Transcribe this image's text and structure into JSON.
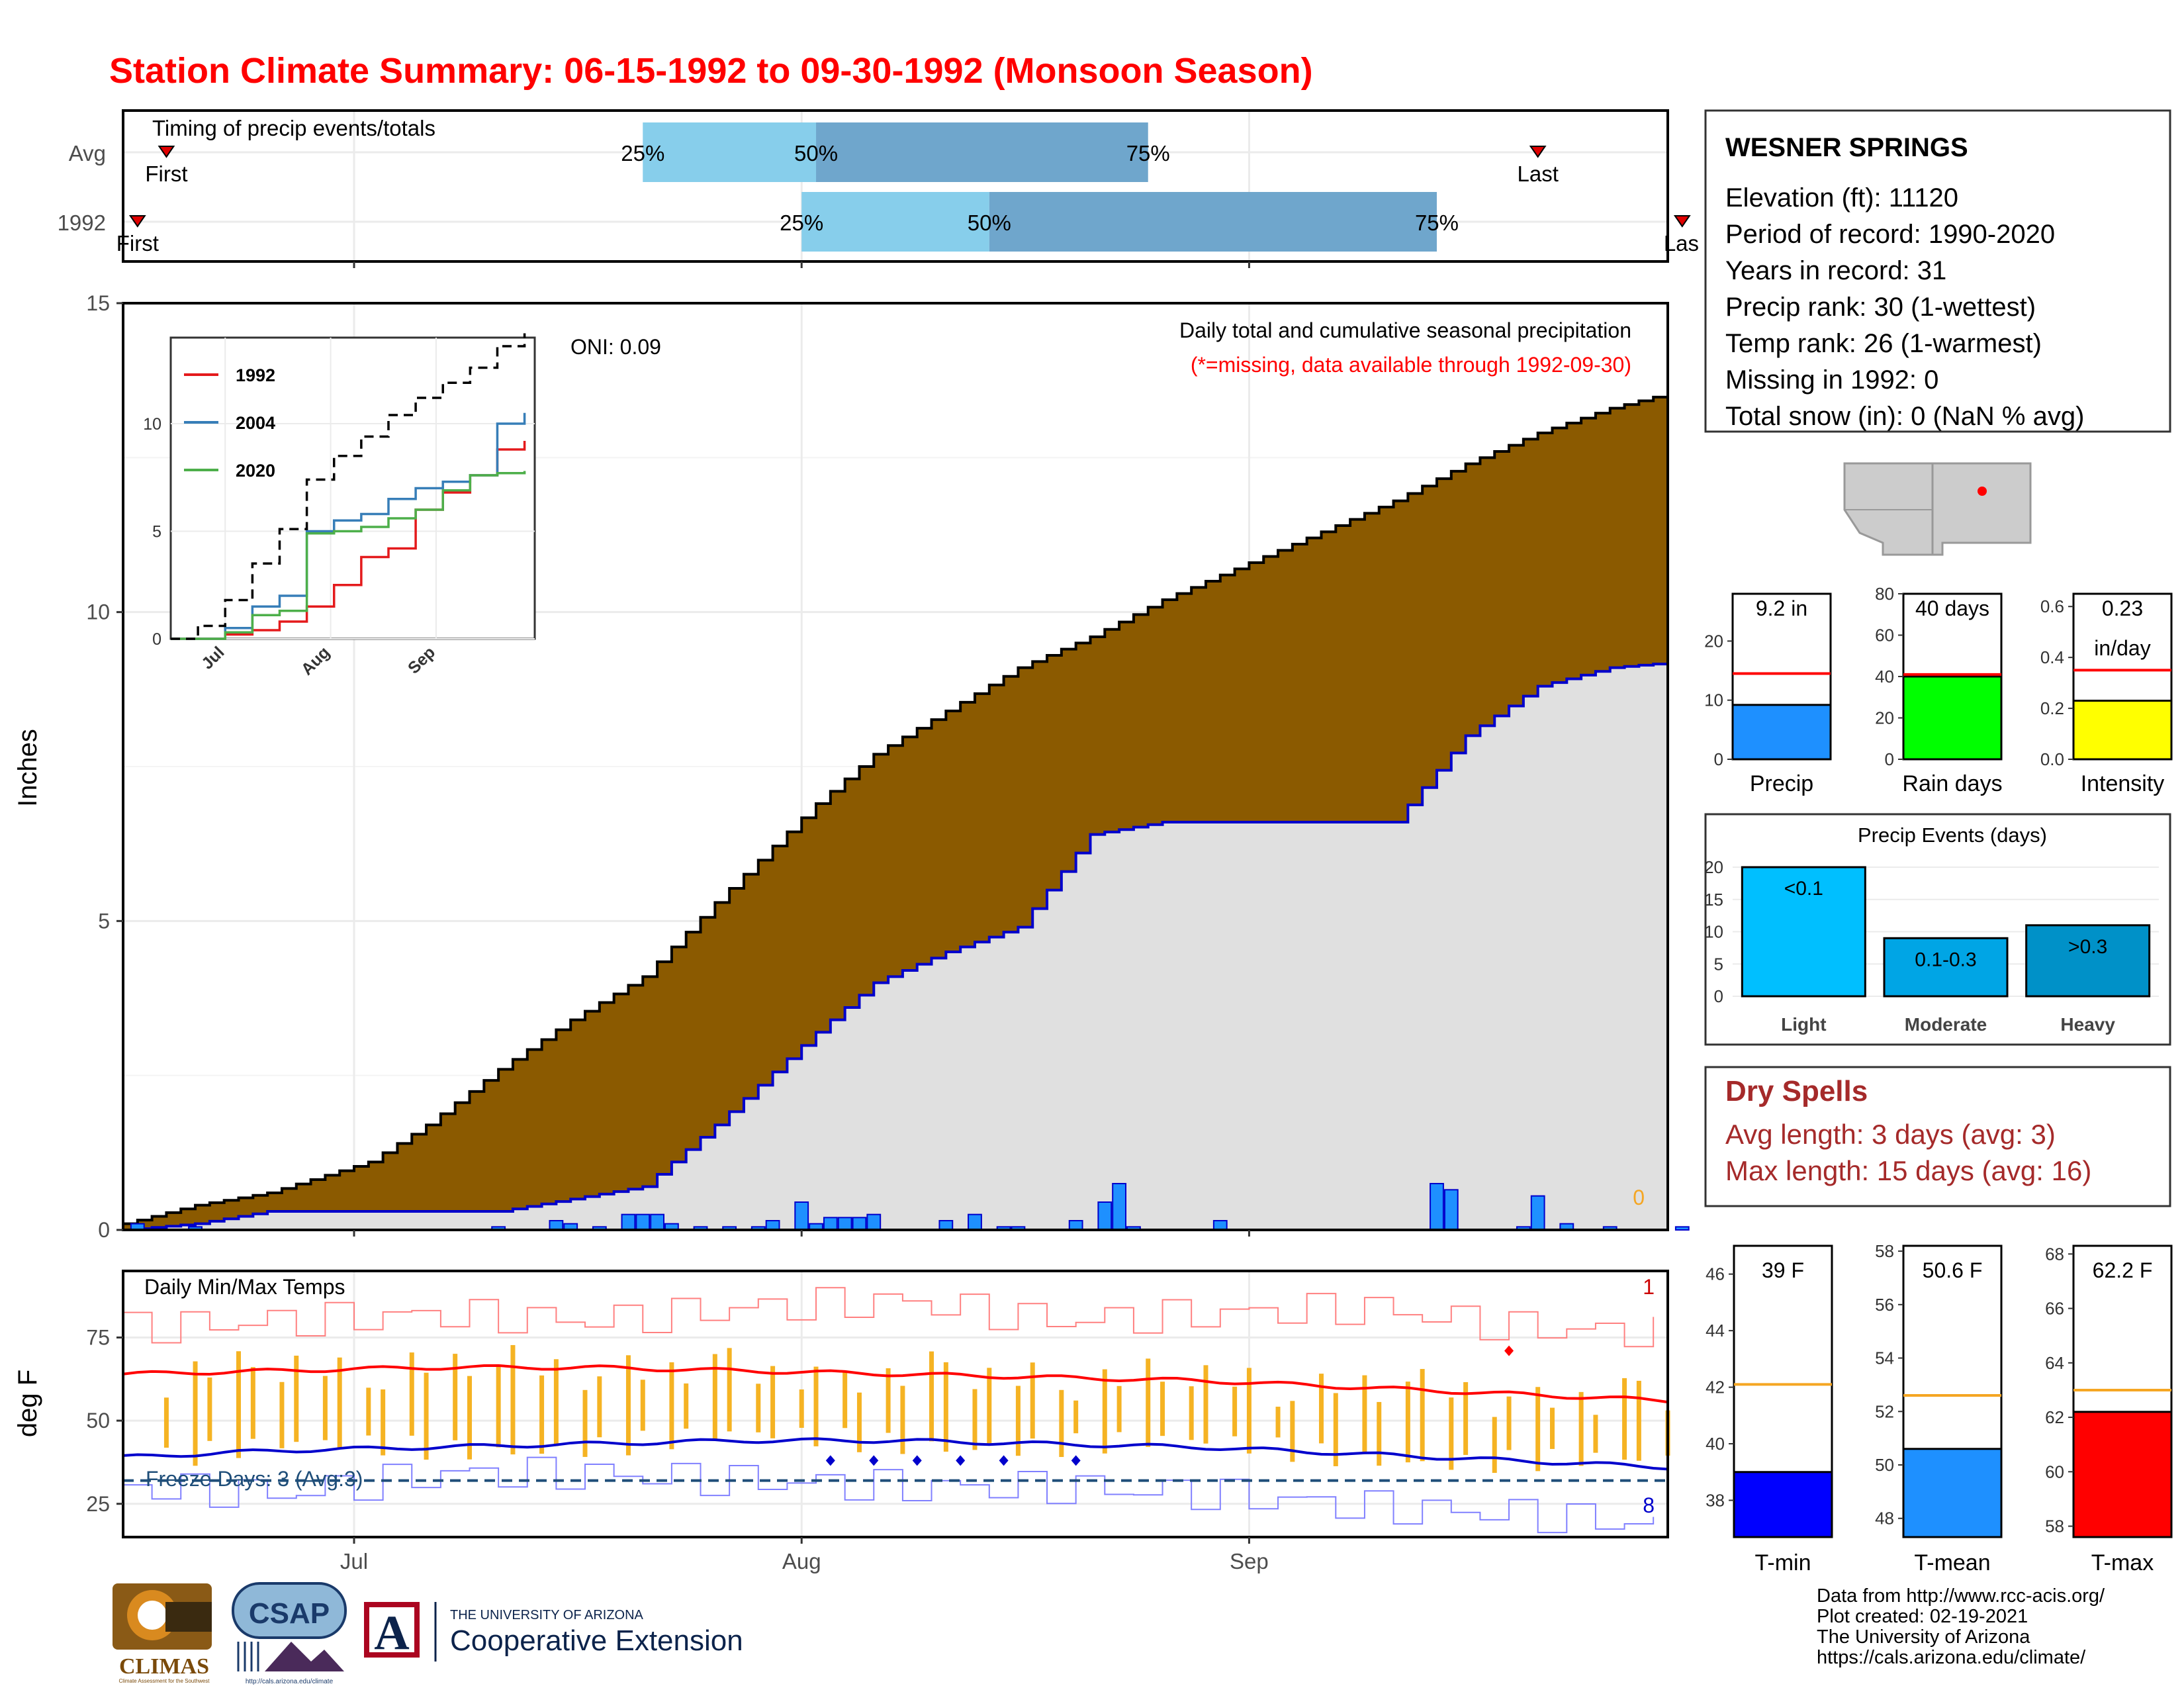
{
  "title": "Station Climate Summary: 06-15-1992 to 09-30-1992 (Monsoon Season)",
  "timing": {
    "label": "Timing of precip events/totals",
    "rows": [
      "Avg",
      "1992"
    ],
    "first_label": "First",
    "last_label": "Last",
    "last_label_clipped": "Las",
    "pct_labels": [
      "25%",
      "50%",
      "75%"
    ],
    "avg": {
      "first": "1990-06-18",
      "p25": "1990-07-20",
      "p50": "1990-08-01",
      "p75": "1990-08-24",
      "last": "1990-09-20"
    },
    "y1992": {
      "first": "1990-06-16",
      "p25": "1990-07-31",
      "p50": "1990-08-13",
      "p75": "1990-09-13",
      "last": "1990-09-30"
    },
    "colors": {
      "light": "#87ceeb",
      "dark": "#6fa6cc",
      "marker": "#e00000"
    }
  },
  "main_chart": {
    "ylabel": "Inches",
    "yticks": [
      "0",
      "5",
      "10",
      "15"
    ],
    "ylim": [
      0,
      15
    ],
    "month_labels": [
      "Jul",
      "Aug",
      "Sep"
    ],
    "oni": "ONI: 0.09",
    "subtitle": "Daily total and cumulative seasonal precipitation",
    "note": "(*=missing, data available through 1992-09-30)",
    "zero_label": "0",
    "colors": {
      "avg_fill": "#8b5a00",
      "obs_fill": "#e0e0e0",
      "obs_line": "#0000cc",
      "bar": "#1e90ff"
    }
  },
  "chart_data": [
    {
      "type": "area",
      "title": "Daily total and cumulative seasonal precipitation",
      "xlabel": "",
      "ylabel": "Inches",
      "ylim": [
        0,
        15
      ],
      "x_range": [
        "06-15",
        "09-30"
      ],
      "series": [
        {
          "name": "",
          "kind": "average cumulative",
          "x": [
            "06-15",
            "06-20",
            "06-25",
            "07-01",
            "07-05",
            "07-10",
            "07-15",
            "07-20",
            "07-25",
            "08-01",
            "08-05",
            "08-10",
            "08-15",
            "08-20",
            "08-25",
            "09-01",
            "09-05",
            "09-10",
            "09-15",
            "09-20",
            "09-25",
            "09-30"
          ],
          "y": [
            0.1,
            0.4,
            0.6,
            1.1,
            1.7,
            2.6,
            3.4,
            4.1,
            5.3,
            6.9,
            7.7,
            8.4,
            9.1,
            9.6,
            10.2,
            10.9,
            11.3,
            11.8,
            12.4,
            12.9,
            13.3,
            13.6
          ]
        },
        {
          "name": "1992",
          "kind": "observed cumulative",
          "x": [
            "06-15",
            "06-20",
            "06-25",
            "07-01",
            "07-05",
            "07-10",
            "07-15",
            "07-20",
            "07-25",
            "08-01",
            "08-05",
            "08-10",
            "08-15",
            "08-20",
            "08-25",
            "09-01",
            "09-05",
            "09-10",
            "09-15",
            "09-20",
            "09-25",
            "09-30"
          ],
          "y": [
            0.0,
            0.1,
            0.3,
            0.3,
            0.3,
            0.3,
            0.5,
            0.7,
            1.7,
            3.2,
            4.0,
            4.5,
            4.9,
            6.4,
            6.6,
            6.6,
            6.6,
            6.6,
            8.0,
            8.8,
            9.1,
            9.2
          ]
        },
        {
          "name": "",
          "kind": "daily precip bars",
          "x": [
            "06-16",
            "06-20",
            "07-10",
            "07-14",
            "07-15",
            "07-17",
            "07-19",
            "07-20",
            "07-21",
            "07-22",
            "07-24",
            "07-26",
            "07-28",
            "07-29",
            "07-31",
            "08-01",
            "08-02",
            "08-03",
            "08-04",
            "08-05",
            "08-10",
            "08-12",
            "08-14",
            "08-15",
            "08-19",
            "08-21",
            "08-22",
            "08-23",
            "08-29",
            "09-13",
            "09-14",
            "09-19",
            "09-20",
            "09-22",
            "09-25",
            "09-30"
          ],
          "y": [
            0.1,
            0.05,
            0.05,
            0.15,
            0.1,
            0.05,
            0.25,
            0.25,
            0.25,
            0.1,
            0.05,
            0.05,
            0.05,
            0.15,
            0.45,
            0.1,
            0.2,
            0.2,
            0.2,
            0.25,
            0.15,
            0.25,
            0.05,
            0.05,
            0.15,
            0.45,
            0.75,
            0.05,
            0.15,
            0.75,
            0.65,
            0.05,
            0.55,
            0.1,
            0.05,
            0.05
          ]
        }
      ]
    },
    {
      "type": "line",
      "title": "",
      "ylim": [
        0,
        14
      ],
      "yticks": [
        "0",
        "5",
        "10"
      ],
      "month_labels": [
        "Jul",
        "Aug",
        "Sep"
      ],
      "x": [
        0,
        8,
        16,
        24,
        32,
        40,
        48,
        56,
        64,
        72,
        80,
        88,
        96,
        104
      ],
      "series": [
        {
          "name": "1992",
          "color": "#e41a1c",
          "y": [
            0,
            0,
            0.2,
            0.4,
            0.8,
            1.5,
            2.5,
            3.8,
            4.2,
            6.0,
            6.8,
            7.6,
            8.8,
            9.2
          ]
        },
        {
          "name": "2004",
          "color": "#377eb8",
          "y": [
            0,
            0,
            0.5,
            1.5,
            2.0,
            5.0,
            5.5,
            5.8,
            6.5,
            7.0,
            7.3,
            7.6,
            10.0,
            10.5
          ]
        },
        {
          "name": "2020",
          "color": "#4daf4a",
          "y": [
            0,
            0,
            0.3,
            1.1,
            1.3,
            4.9,
            5.0,
            5.2,
            5.6,
            6.0,
            6.9,
            7.6,
            7.7,
            7.8
          ]
        },
        {
          "name": "",
          "kind": "average",
          "dash": true,
          "y": [
            0,
            0.6,
            1.8,
            3.5,
            5.1,
            7.4,
            8.5,
            9.4,
            10.4,
            11.2,
            11.9,
            12.6,
            13.6,
            14.2
          ]
        }
      ]
    },
    {
      "type": "line",
      "title": "Daily Min/Max Temps",
      "ylabel": "deg F",
      "ylim": [
        15,
        95
      ],
      "yticks": [
        "25",
        "50",
        "75"
      ],
      "freeze_line": 32,
      "series": [
        {
          "name": "",
          "kind": "average max",
          "color": "#ff0000",
          "y": [
            64,
            65,
            66,
            66,
            65,
            64,
            63,
            62,
            60,
            58,
            56
          ]
        },
        {
          "name": "",
          "kind": "average min",
          "color": "#0000cc",
          "y": [
            39,
            41,
            42,
            43,
            44,
            44,
            43,
            42,
            40,
            38,
            36
          ]
        },
        {
          "name": "",
          "kind": "record high",
          "color": "#ff8080",
          "y": [
            78,
            80,
            82,
            80,
            84,
            86,
            80,
            82,
            84,
            78,
            76
          ]
        },
        {
          "name": "",
          "kind": "record low",
          "color": "#8080ff",
          "y": [
            30,
            28,
            34,
            34,
            32,
            30,
            30,
            28,
            24,
            22,
            18
          ]
        }
      ]
    },
    {
      "type": "bar",
      "title": "",
      "categories": [
        "Precip",
        "Rain days",
        "Intensity"
      ],
      "values": [
        9.2,
        40,
        0.23
      ],
      "averages": [
        14.5,
        41,
        0.35
      ],
      "ylims": [
        [
          0,
          28
        ],
        [
          0,
          80
        ],
        [
          0,
          0.65
        ]
      ],
      "labels": [
        "9.2 in",
        "40 days",
        "0.23",
        "in/day"
      ]
    },
    {
      "type": "bar",
      "title": "Precip Events (days)",
      "categories": [
        "Light",
        "Moderate",
        "Heavy"
      ],
      "values": [
        20,
        9,
        11
      ],
      "bar_labels": [
        "<0.1",
        "0.1-0.3",
        ">0.3"
      ],
      "yticks": [
        "0",
        "5",
        "10",
        "15",
        "20"
      ],
      "ylim": [
        0,
        20
      ]
    },
    {
      "type": "bar",
      "title": "",
      "categories": [
        "T-min",
        "T-mean",
        "T-max"
      ],
      "values": [
        39,
        50.6,
        62.2
      ],
      "averages": [
        42.1,
        52.6,
        63
      ],
      "labels": [
        "39 F",
        "50.6 F",
        "62.2 F"
      ],
      "ylims": [
        [
          36.7,
          47
        ],
        [
          47.3,
          58.2
        ],
        [
          57.6,
          68.3
        ]
      ]
    }
  ],
  "temp_panel": {
    "title": "Daily Min/Max Temps",
    "ylabel": "deg F",
    "freeze_text": "Freeze Days: 3 (Avg:3)",
    "high_count": "1",
    "low_count": "8",
    "colors": {
      "bar": "#f5b323",
      "avg_max": "#ff0000",
      "avg_min": "#0000cc",
      "freeze": "#1f4e79"
    }
  },
  "station": {
    "name": "WESNER SPRINGS",
    "lines": [
      "Elevation (ft): 11120",
      "Period of record: 1990-2020",
      "Years in record: 31",
      "Precip rank: 30 (1-wettest)",
      "Temp rank: 26 (1-warmest)",
      "Missing in 1992: 0",
      "Total snow (in): 0 (NaN % avg)"
    ]
  },
  "mini_bars": {
    "precip": {
      "label": "Precip",
      "value_label": "9.2 in",
      "ticks": [
        "0",
        "10",
        "20"
      ]
    },
    "rain_days": {
      "label": "Rain days",
      "value_label": "40 days",
      "ticks": [
        "0",
        "20",
        "40",
        "60",
        "80"
      ]
    },
    "intensity": {
      "label": "Intensity",
      "value_label": "0.23",
      "unit": "in/day",
      "ticks": [
        "0.0",
        "0.2",
        "0.4",
        "0.6"
      ]
    },
    "colors": {
      "precip": "#1e90ff",
      "rain_days": "#00ff00",
      "intensity": "#ffff00",
      "avg": "#ff0000"
    }
  },
  "events": {
    "title": "Precip Events (days)",
    "ticks": [
      "0",
      "5",
      "10",
      "15",
      "20"
    ],
    "categories": [
      "Light",
      "Moderate",
      "Heavy"
    ],
    "bar_labels": [
      "<0.1",
      "0.1-0.3",
      ">0.3"
    ],
    "colors": [
      "#00bfff",
      "#00a5e5",
      "#0091c8"
    ]
  },
  "dry_spells": {
    "title": "Dry Spells",
    "avg": "Avg length: 3 days (avg: 3)",
    "max": "Max length: 15 days (avg: 16)",
    "color": "#a52a2a"
  },
  "temp_bars": {
    "tmin": {
      "label": "T-min",
      "value_label": "39 F",
      "ticks": [
        "38",
        "40",
        "42",
        "44",
        "46"
      ]
    },
    "tmean": {
      "label": "T-mean",
      "value_label": "50.6 F",
      "ticks": [
        "48",
        "50",
        "52",
        "54",
        "56",
        "58"
      ]
    },
    "tmax": {
      "label": "T-max",
      "value_label": "62.2 F",
      "ticks": [
        "58",
        "60",
        "62",
        "64",
        "66",
        "68"
      ]
    },
    "colors": {
      "tmin": "#0000ff",
      "tmean": "#1e90ff",
      "tmax": "#ff0000",
      "avg": "#f5a623"
    }
  },
  "footer": {
    "lines": [
      "Data from http://www.rcc-acis.org/",
      "Plot created: 02-19-2021",
      "The University of Arizona",
      "https://cals.arizona.edu/climate/"
    ],
    "logos": {
      "climas": "CLIMAS",
      "climas_sub": "Climate Assessment for the Southwest",
      "csap": "CSAP",
      "csap_url": "http://cals.arizona.edu/climate",
      "ua_letter": "A",
      "ua_top": "THE UNIVERSITY OF ARIZONA",
      "ua_bottom": "Cooperative Extension"
    }
  }
}
